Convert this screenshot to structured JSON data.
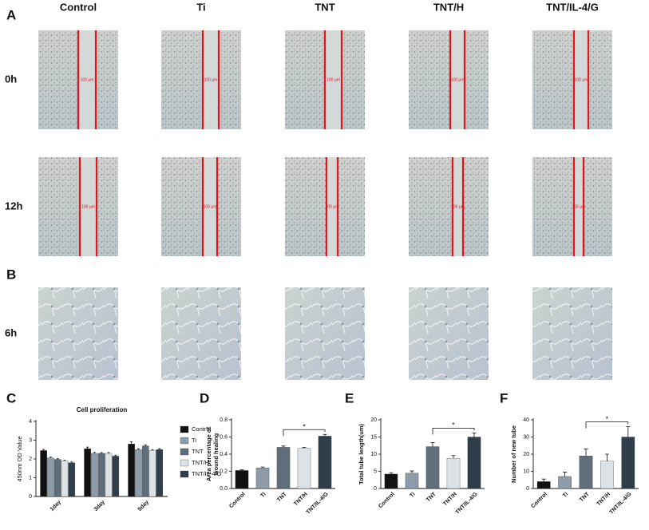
{
  "panel_labels": [
    "A",
    "B",
    "C",
    "D",
    "E",
    "F"
  ],
  "columns": [
    "Control",
    "Ti",
    "TNT",
    "TNT/H",
    "TNT/IL-4/G"
  ],
  "rows": [
    "0h",
    "12h",
    "6h"
  ],
  "scale_label": "100 μm",
  "chart_data": [
    {
      "type": "grouped_bar",
      "title": "Cell proliferation",
      "ylabel": "450nm OD Value",
      "categories": [
        "1day",
        "3day",
        "5day"
      ],
      "series": [
        {
          "name": "Control",
          "color": "#111111",
          "values": [
            2.45,
            2.55,
            2.8
          ],
          "errors": [
            0.06,
            0.08,
            0.12
          ]
        },
        {
          "name": "Ti",
          "color": "#8d9ca8",
          "values": [
            2.05,
            2.3,
            2.5
          ],
          "errors": [
            0.05,
            0.05,
            0.05
          ]
        },
        {
          "name": "TNT",
          "color": "#5f6e7a",
          "values": [
            1.98,
            2.3,
            2.7
          ],
          "errors": [
            0.04,
            0.04,
            0.05
          ]
        },
        {
          "name": "TNT/H",
          "color": "#dde2e6",
          "values": [
            1.9,
            2.3,
            2.45
          ],
          "errors": [
            0.03,
            0.04,
            0.05
          ]
        },
        {
          "name": "TNT/IL-4/G",
          "color": "#2f3e4a",
          "values": [
            1.8,
            2.15,
            2.5
          ],
          "errors": [
            0.04,
            0.05,
            0.05
          ]
        }
      ],
      "ylim": [
        0,
        4
      ],
      "yticks": [
        0,
        1,
        2,
        3,
        4
      ]
    },
    {
      "type": "bar",
      "ylabel": [
        "Area percentage of",
        "wound healing"
      ],
      "categories": [
        "Control",
        "Ti",
        "TNT",
        "TNT/H",
        "TNT/IL-4/G"
      ],
      "values": [
        0.21,
        0.24,
        0.48,
        0.47,
        0.61
      ],
      "errors": [
        0.01,
        0.01,
        0.015,
        0.01,
        0.02
      ],
      "colors": [
        "#111111",
        "#8d9ca8",
        "#5f6e7a",
        "#dde2e6",
        "#2f3e4a"
      ],
      "ylim": [
        0,
        0.8
      ],
      "yticks": [
        {
          "value": 0,
          "label": "0.0"
        },
        0.2,
        0.4,
        0.6,
        0.8
      ],
      "annotation": "*"
    },
    {
      "type": "bar",
      "ylabel": [
        "Total tube length(um)"
      ],
      "categories": [
        "Control",
        "Ti",
        "TNT",
        "TNT/H",
        "TNT/IL-4/G"
      ],
      "values": [
        4.2,
        4.5,
        12.2,
        8.8,
        15
      ],
      "errors": [
        0.4,
        0.6,
        1.2,
        0.8,
        1.2
      ],
      "colors": [
        "#111111",
        "#8d9ca8",
        "#5f6e7a",
        "#dde2e6",
        "#2f3e4a"
      ],
      "ylim": [
        0,
        20
      ],
      "yticks": [
        0,
        5,
        10,
        15,
        20
      ],
      "annotation": "*"
    },
    {
      "type": "bar",
      "ylabel": [
        "Number of new tube"
      ],
      "categories": [
        "Control",
        "Ti",
        "TNT",
        "TNT/H",
        "TNT/IL-4/G"
      ],
      "values": [
        4,
        7,
        19,
        16,
        30
      ],
      "errors": [
        1.5,
        2.5,
        4,
        4,
        6
      ],
      "colors": [
        "#111111",
        "#8d9ca8",
        "#5f6e7a",
        "#dde2e6",
        "#2f3e4a"
      ],
      "ylim": [
        0,
        40
      ],
      "yticks": [
        0,
        10,
        20,
        30,
        40
      ],
      "annotation": "*"
    }
  ]
}
